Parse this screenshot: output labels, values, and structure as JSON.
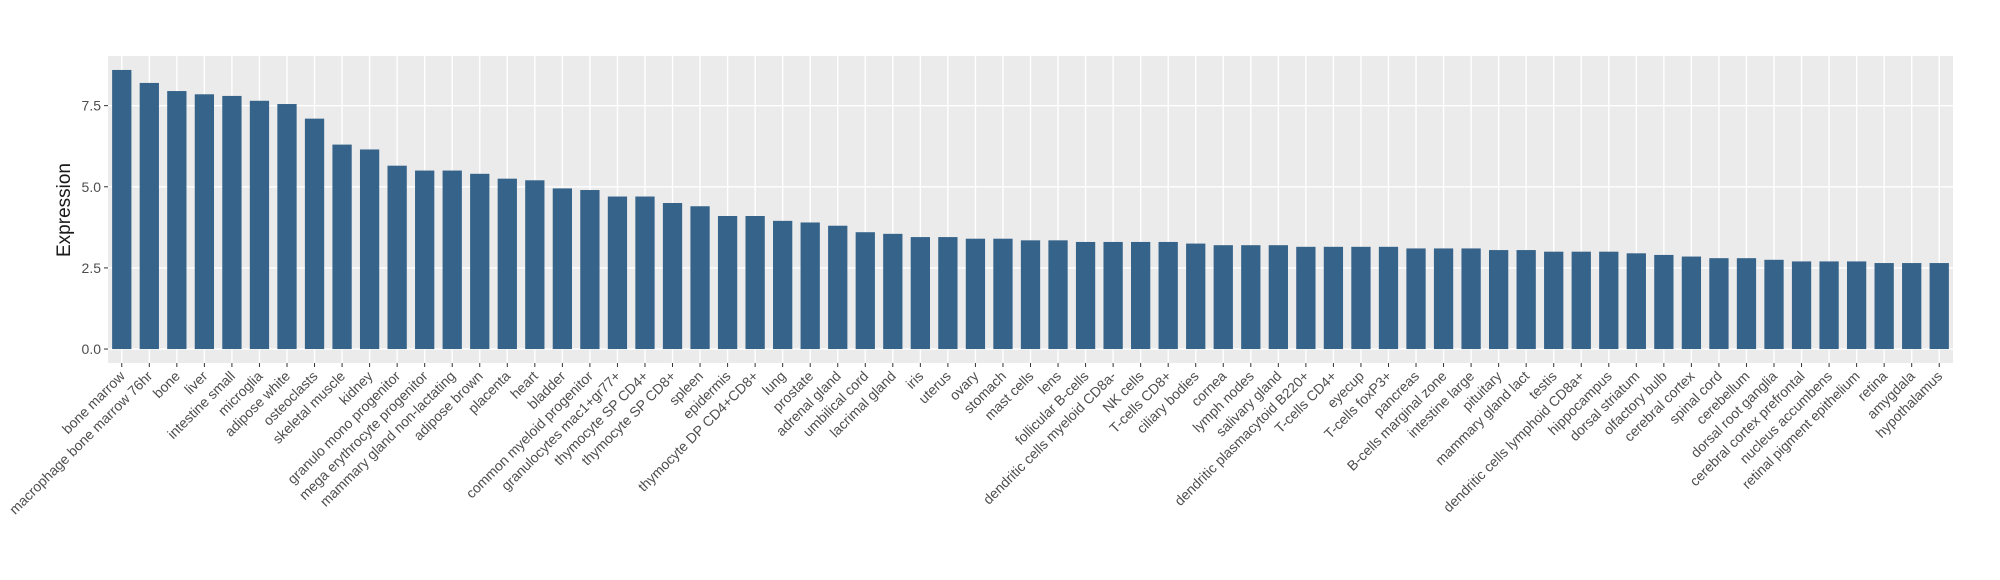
{
  "chart_data": {
    "type": "bar",
    "y_label": "Expression",
    "color": "#35638a",
    "grid": true,
    "categories": [
      "bone marrow",
      "macrophage bone marrow 76hr",
      "bone",
      "liver",
      "intestine small",
      "microglia",
      "adipose white",
      "osteoclasts",
      "skeletal muscle",
      "kidney",
      "granulo mono progenitor",
      "mega erythrocyte progenitor",
      "mammary gland non-lactating",
      "adipose brown",
      "placenta",
      "heart",
      "bladder",
      "common myeloid progenitor",
      "granulocytes mac1+gr77+",
      "thymocyte SP CD4+",
      "thymocyte SP CD8+",
      "spleen",
      "epidermis",
      "thymocyte DP CD4+CD8+",
      "lung",
      "prostate",
      "adrenal gland",
      "umbilical cord",
      "lacrimal gland",
      "iris",
      "uterus",
      "ovary",
      "stomach",
      "mast cells",
      "lens",
      "follicular B-cells",
      "dendritic cells myeloid CD8a-",
      "NK cells",
      "T-cells CD8+",
      "ciliary bodies",
      "cornea",
      "lymph nodes",
      "salivary gland",
      "dendritic plasmacytoid B220+",
      "T-cells CD4+",
      "eyecup",
      "T-cells foxP3+",
      "pancreas",
      "B-cells marginal zone",
      "intestine large",
      "pituitary",
      "mammary gland lact",
      "testis",
      "dendritic cells lymphoid CD8a+",
      "hippocampus",
      "dorsal striatum",
      "olfactory bulb",
      "cerebral cortex",
      "spinal cord",
      "cerebellum",
      "dorsal root ganglia",
      "cerebral cortex prefrontal",
      "nucleus accumbens",
      "retinal pigment epithelium",
      "retina",
      "amygdala",
      "hypothalamus"
    ],
    "values": [
      8.6,
      8.2,
      7.95,
      7.85,
      7.8,
      7.65,
      7.55,
      7.1,
      6.3,
      6.15,
      5.65,
      5.5,
      5.5,
      5.4,
      5.25,
      5.2,
      4.95,
      4.9,
      4.7,
      4.7,
      4.5,
      4.4,
      4.1,
      4.1,
      3.95,
      3.9,
      3.8,
      3.6,
      3.55,
      3.45,
      3.45,
      3.4,
      3.4,
      3.35,
      3.35,
      3.3,
      3.3,
      3.3,
      3.3,
      3.25,
      3.2,
      3.2,
      3.2,
      3.15,
      3.15,
      3.15,
      3.15,
      3.1,
      3.1,
      3.1,
      3.05,
      3.05,
      3.0,
      3.0,
      3.0,
      2.95,
      2.9,
      2.85,
      2.8,
      2.8,
      2.75,
      2.7,
      2.7,
      2.7,
      2.65,
      2.65,
      2.65
    ],
    "ylim": [
      -0.43,
      9.03
    ],
    "yticks": [
      {
        "value": 0,
        "label": "0.0"
      },
      2.5,
      {
        "value": 5,
        "label": "5.0"
      },
      7.5
    ]
  }
}
